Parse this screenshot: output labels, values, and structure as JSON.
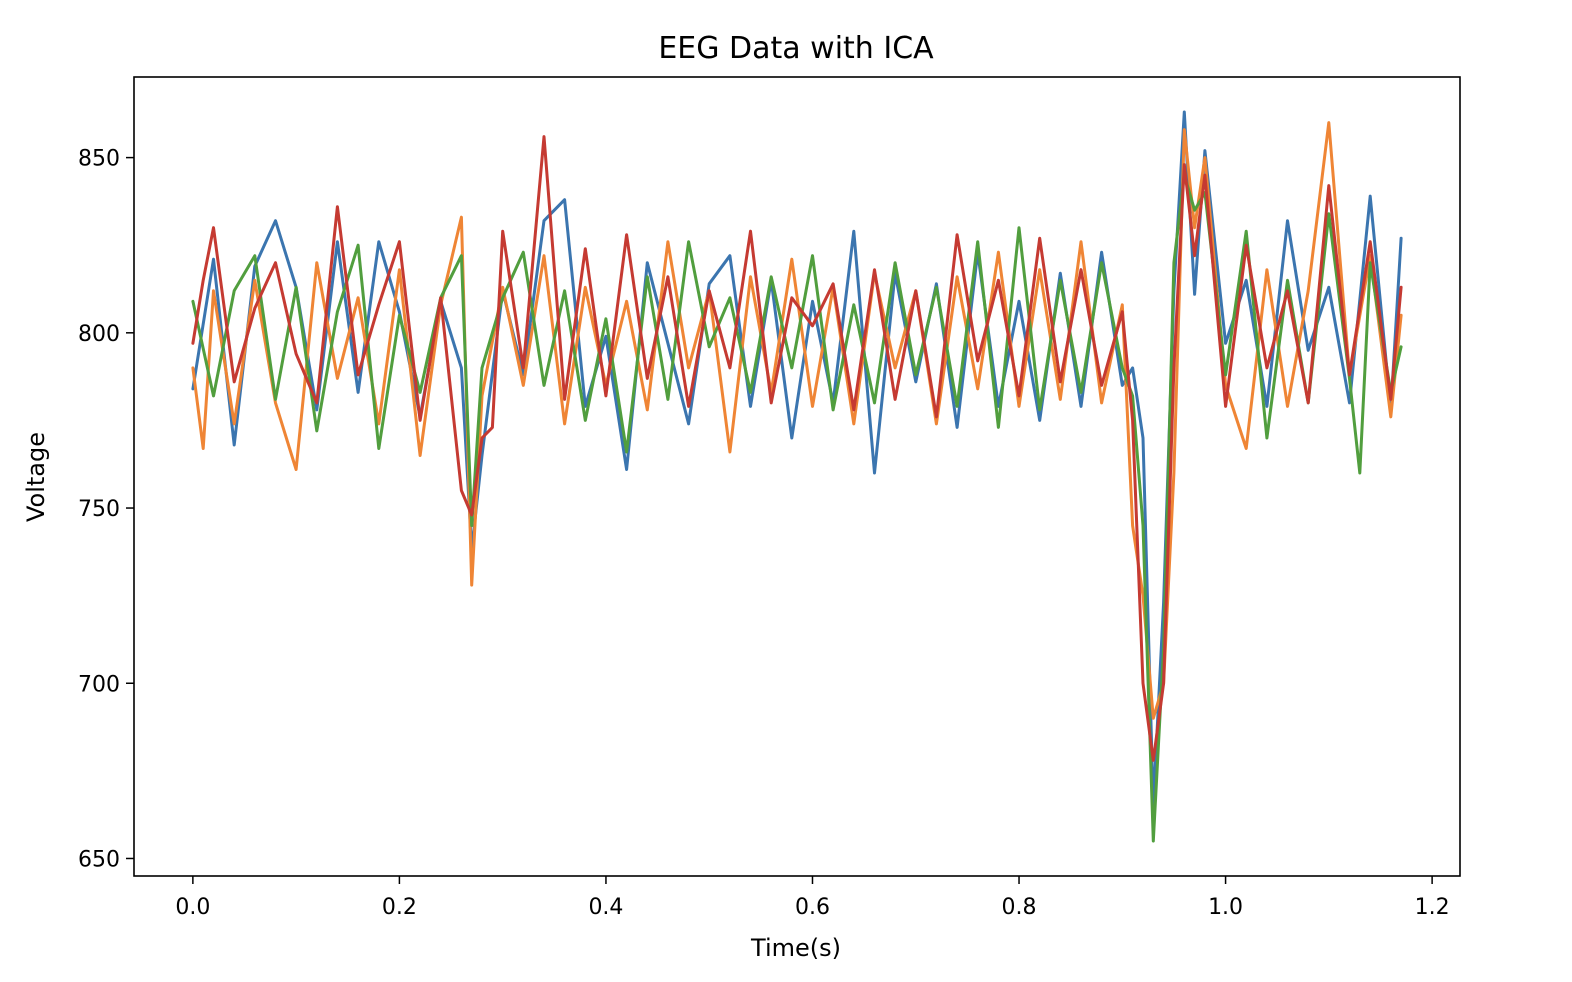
{
  "chart_data": {
    "type": "line",
    "title": "EEG Data with ICA",
    "xlabel": "Time(s)",
    "ylabel": "Voltage",
    "xlim": [
      -0.057,
      1.227
    ],
    "ylim": [
      645,
      873
    ],
    "xticks": [
      0.0,
      0.2,
      0.4,
      0.6,
      0.8,
      1.0,
      1.2
    ],
    "xtick_labels": [
      "0.0",
      "0.2",
      "0.4",
      "0.6",
      "0.8",
      "1.0",
      "1.2"
    ],
    "yticks": [
      650,
      700,
      750,
      800,
      850
    ],
    "ytick_labels": [
      "650",
      "700",
      "750",
      "800",
      "850"
    ],
    "grid": false,
    "legend": "none",
    "series": [
      {
        "color": "#3b75af",
        "x": [
          0.0,
          0.02,
          0.04,
          0.06,
          0.08,
          0.1,
          0.12,
          0.14,
          0.16,
          0.18,
          0.2,
          0.22,
          0.24,
          0.26,
          0.27,
          0.28,
          0.3,
          0.32,
          0.34,
          0.36,
          0.38,
          0.4,
          0.42,
          0.44,
          0.46,
          0.48,
          0.5,
          0.52,
          0.54,
          0.56,
          0.58,
          0.6,
          0.62,
          0.64,
          0.66,
          0.68,
          0.7,
          0.72,
          0.74,
          0.76,
          0.78,
          0.8,
          0.82,
          0.84,
          0.86,
          0.88,
          0.9,
          0.91,
          0.92,
          0.93,
          0.94,
          0.95,
          0.96,
          0.97,
          0.98,
          1.0,
          1.02,
          1.04,
          1.06,
          1.08,
          1.1,
          1.12,
          1.14,
          1.16,
          1.17
        ],
        "y": [
          784,
          821,
          768,
          819,
          832,
          813,
          778,
          826,
          783,
          826,
          806,
          776,
          809,
          790,
          738,
          765,
          812,
          788,
          832,
          838,
          779,
          799,
          761,
          820,
          797,
          774,
          814,
          822,
          779,
          815,
          770,
          809,
          780,
          829,
          760,
          817,
          786,
          814,
          773,
          823,
          779,
          809,
          775,
          817,
          779,
          823,
          785,
          790,
          770,
          665,
          723,
          812,
          863,
          811,
          852,
          797,
          815,
          779,
          832,
          795,
          813,
          780,
          839,
          778,
          827
        ]
      },
      {
        "color": "#ef8535",
        "x": [
          0.0,
          0.01,
          0.02,
          0.04,
          0.06,
          0.08,
          0.1,
          0.12,
          0.14,
          0.16,
          0.18,
          0.2,
          0.22,
          0.24,
          0.26,
          0.27,
          0.28,
          0.3,
          0.32,
          0.34,
          0.36,
          0.38,
          0.4,
          0.42,
          0.44,
          0.46,
          0.48,
          0.5,
          0.52,
          0.54,
          0.56,
          0.58,
          0.6,
          0.62,
          0.64,
          0.66,
          0.68,
          0.7,
          0.72,
          0.74,
          0.76,
          0.78,
          0.8,
          0.82,
          0.84,
          0.86,
          0.88,
          0.9,
          0.91,
          0.92,
          0.93,
          0.94,
          0.95,
          0.96,
          0.97,
          0.98,
          1.0,
          1.02,
          1.04,
          1.06,
          1.08,
          1.1,
          1.12,
          1.14,
          1.16,
          1.17
        ],
        "y": [
          790,
          767,
          812,
          774,
          815,
          780,
          761,
          820,
          787,
          810,
          774,
          818,
          765,
          808,
          833,
          728,
          782,
          813,
          785,
          822,
          774,
          813,
          785,
          809,
          778,
          826,
          790,
          812,
          766,
          816,
          783,
          821,
          779,
          813,
          774,
          817,
          790,
          812,
          774,
          816,
          784,
          823,
          779,
          818,
          781,
          826,
          780,
          808,
          745,
          725,
          690,
          700,
          760,
          858,
          830,
          850,
          785,
          767,
          818,
          779,
          812,
          860,
          788,
          822,
          776,
          805
        ]
      },
      {
        "color": "#519e3e",
        "x": [
          0.0,
          0.02,
          0.04,
          0.06,
          0.08,
          0.1,
          0.12,
          0.14,
          0.16,
          0.18,
          0.2,
          0.22,
          0.24,
          0.26,
          0.27,
          0.28,
          0.3,
          0.32,
          0.34,
          0.36,
          0.38,
          0.4,
          0.42,
          0.44,
          0.46,
          0.48,
          0.5,
          0.52,
          0.54,
          0.56,
          0.58,
          0.6,
          0.62,
          0.64,
          0.66,
          0.68,
          0.7,
          0.72,
          0.74,
          0.76,
          0.78,
          0.8,
          0.82,
          0.84,
          0.86,
          0.88,
          0.9,
          0.91,
          0.92,
          0.93,
          0.94,
          0.95,
          0.96,
          0.97,
          0.98,
          1.0,
          1.02,
          1.04,
          1.06,
          1.08,
          1.1,
          1.12,
          1.13,
          1.14,
          1.16,
          1.17
        ],
        "y": [
          809,
          782,
          812,
          822,
          781,
          813,
          772,
          806,
          825,
          767,
          805,
          783,
          810,
          822,
          745,
          790,
          810,
          823,
          785,
          812,
          775,
          804,
          766,
          816,
          781,
          826,
          796,
          810,
          783,
          816,
          790,
          822,
          778,
          808,
          780,
          820,
          788,
          813,
          779,
          826,
          773,
          830,
          778,
          815,
          783,
          820,
          790,
          782,
          745,
          655,
          710,
          820,
          845,
          835,
          840,
          788,
          829,
          770,
          815,
          780,
          834,
          787,
          760,
          820,
          783,
          796
        ]
      },
      {
        "color": "#c53a32",
        "x": [
          0.0,
          0.01,
          0.02,
          0.04,
          0.06,
          0.08,
          0.1,
          0.12,
          0.14,
          0.16,
          0.18,
          0.2,
          0.22,
          0.24,
          0.26,
          0.27,
          0.28,
          0.29,
          0.3,
          0.32,
          0.34,
          0.36,
          0.38,
          0.4,
          0.42,
          0.44,
          0.46,
          0.48,
          0.5,
          0.52,
          0.54,
          0.56,
          0.58,
          0.6,
          0.62,
          0.64,
          0.66,
          0.68,
          0.7,
          0.72,
          0.74,
          0.76,
          0.78,
          0.8,
          0.82,
          0.84,
          0.86,
          0.88,
          0.9,
          0.91,
          0.92,
          0.93,
          0.94,
          0.95,
          0.96,
          0.97,
          0.98,
          1.0,
          1.02,
          1.04,
          1.06,
          1.08,
          1.1,
          1.12,
          1.14,
          1.16,
          1.17
        ],
        "y": [
          797,
          815,
          830,
          786,
          807,
          820,
          794,
          780,
          836,
          788,
          808,
          826,
          775,
          810,
          755,
          748,
          770,
          773,
          829,
          790,
          856,
          781,
          824,
          782,
          828,
          787,
          816,
          779,
          812,
          790,
          829,
          780,
          810,
          802,
          814,
          778,
          818,
          781,
          812,
          776,
          828,
          792,
          815,
          782,
          827,
          786,
          818,
          785,
          806,
          775,
          700,
          678,
          700,
          790,
          848,
          822,
          845,
          779,
          825,
          790,
          812,
          780,
          842,
          788,
          826,
          781,
          813
        ]
      }
    ]
  }
}
